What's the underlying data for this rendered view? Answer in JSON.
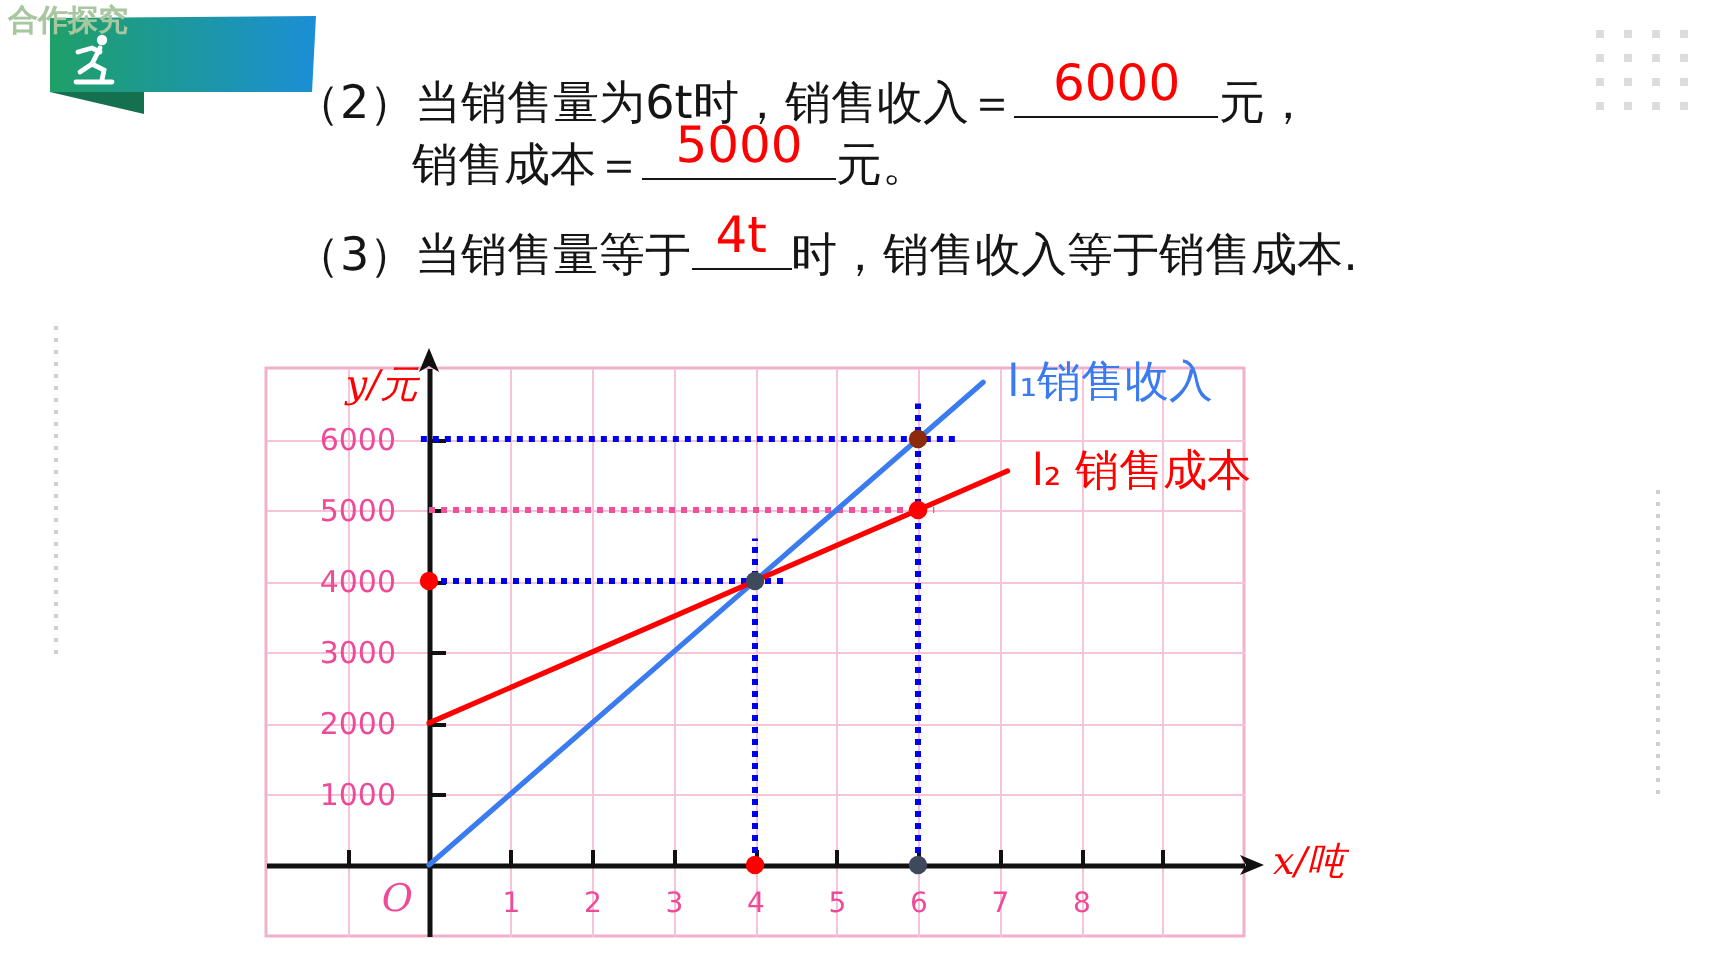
{
  "chart_data": {
    "type": "line",
    "title": "合作探究",
    "xlabel": "x/吨",
    "ylabel": "y/元",
    "xlim": [
      -2,
      10
    ],
    "ylim": [
      -1000,
      7000
    ],
    "xticks": [
      {
        "value": -1,
        "label": null
      },
      1,
      2,
      3,
      4,
      5,
      6,
      7,
      8,
      {
        "value": 9,
        "label": null
      }
    ],
    "yticks": [
      1000,
      2000,
      3000,
      4000,
      5000,
      6000
    ],
    "grid": true,
    "series": [
      {
        "color": "#0000ee",
        "line_style": "dotted",
        "x": [
          -0.1,
          6.5
        ],
        "values": [
          6000,
          6000
        ]
      },
      {
        "color": "#f0509a",
        "line_style": "dotted",
        "x": [
          0,
          6.2
        ],
        "values": [
          5000,
          5000
        ]
      },
      {
        "color": "#0000ee",
        "line_style": "dotted",
        "x": [
          0,
          4.4
        ],
        "values": [
          4000,
          4000
        ]
      },
      {
        "color": "#0000ee",
        "line_style": "dotted",
        "x": [
          4,
          4
        ],
        "values": [
          0,
          4600
        ]
      },
      {
        "color": "#0000ee",
        "line_style": "dotted",
        "x": [
          6,
          6
        ],
        "values": [
          0,
          6500
        ]
      },
      {
        "name": "l₁销售收入",
        "color": "#3b7bf0",
        "x": [
          0,
          6.8
        ],
        "values": [
          0,
          6800
        ]
      },
      {
        "name": "l₂ 销售成本",
        "color": "#ff0000",
        "x": [
          0,
          7.1
        ],
        "values": [
          2000,
          5550
        ]
      },
      {
        "type": "scatter",
        "marker": "circle",
        "x": [
          0,
          4,
          6,
          4,
          6,
          6
        ],
        "values": [
          4000,
          0,
          5000,
          4000,
          6000,
          0
        ],
        "colors": [
          "#ff0000",
          "#ff0000",
          "#ff0000",
          "#3e4a5c",
          "#8b2a0c",
          "#3e4a5c"
        ]
      }
    ],
    "annotations": [
      "（2）当销售量为6t时，销售收入＝",
      "6000",
      "元，",
      "销售成本＝",
      "5000",
      "元。",
      "（3）当销售量等于",
      "4t",
      "时，销售收入等于销售成本.",
      {
        "text": "O",
        "x": 0,
        "y": 0
      }
    ]
  }
}
